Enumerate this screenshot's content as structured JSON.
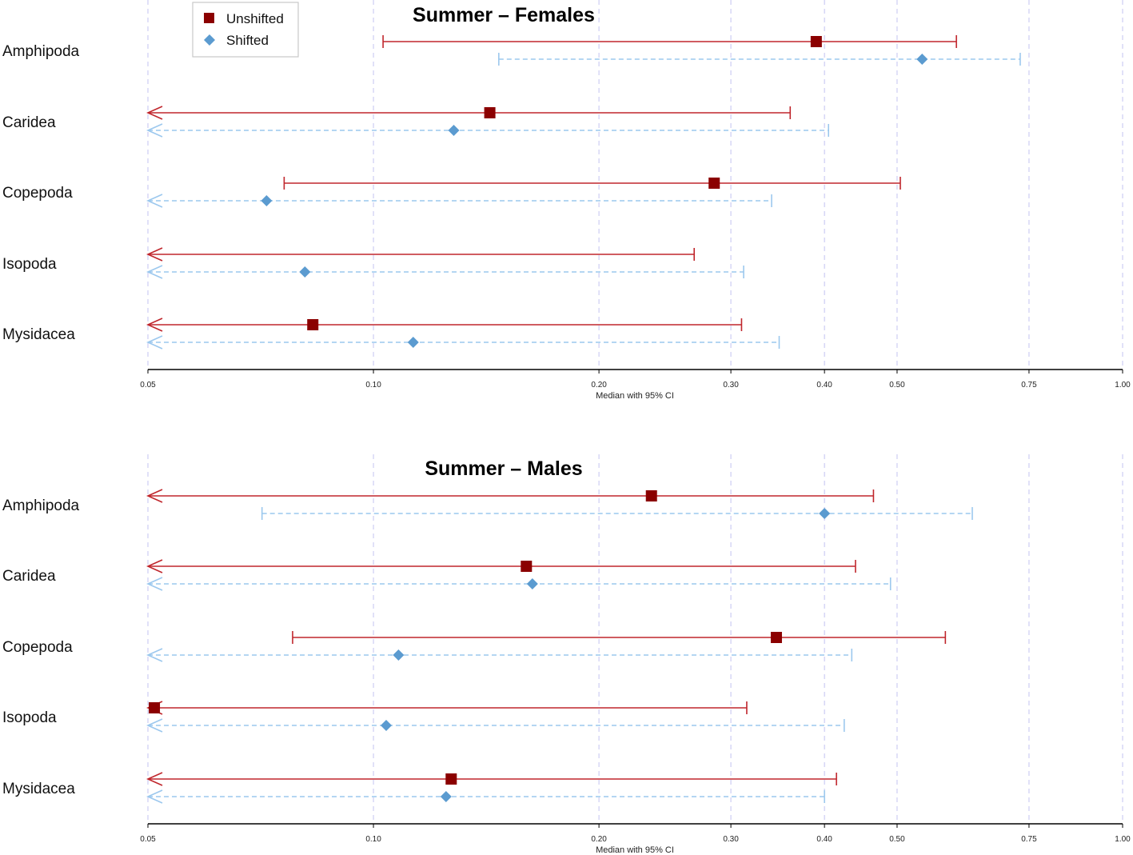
{
  "colors": {
    "unshifted": "#c0272d",
    "unshifted_marker": "#8b0000",
    "shifted": "#9cc8ee",
    "shifted_marker": "#5b9bd0",
    "grid": "#c8c8f2",
    "axis": "#000000"
  },
  "legend": {
    "items": [
      {
        "label": "Unshifted",
        "marker": "square"
      },
      {
        "label": "Shifted",
        "marker": "diamond"
      }
    ]
  },
  "chart_data": [
    {
      "type": "forest",
      "title": "Summer – Females",
      "xlabel": "Median with 95% CI",
      "xscale": "log",
      "xlim": [
        0.05,
        1.0
      ],
      "ticks": [
        0.05,
        0.1,
        0.2,
        0.3,
        0.4,
        0.5,
        0.75,
        1.0
      ],
      "tick_labels": [
        "0.05",
        "0.10",
        "0.20",
        "0.30",
        "0.40",
        "0.50",
        "0.75",
        "1.00"
      ],
      "categories": [
        "Amphipoda",
        "Caridea",
        "Copepoda",
        "Isopoda",
        "Mysidacea"
      ],
      "series": [
        {
          "name": "Unshifted",
          "points": [
            {
              "median": 0.39,
              "lower": 0.103,
              "upper": 0.6
            },
            {
              "median": 0.143,
              "lower": null,
              "upper": 0.36
            },
            {
              "median": 0.285,
              "lower": 0.076,
              "upper": 0.505
            },
            {
              "median": null,
              "lower": null,
              "upper": 0.268
            },
            {
              "median": 0.083,
              "lower": null,
              "upper": 0.31
            }
          ]
        },
        {
          "name": "Shifted",
          "points": [
            {
              "median": 0.54,
              "lower": 0.147,
              "upper": 0.73
            },
            {
              "median": 0.128,
              "lower": null,
              "upper": 0.405
            },
            {
              "median": 0.072,
              "lower": null,
              "upper": 0.34
            },
            {
              "median": 0.081,
              "lower": null,
              "upper": 0.312
            },
            {
              "median": 0.113,
              "lower": null,
              "upper": 0.348
            }
          ]
        }
      ]
    },
    {
      "type": "forest",
      "title": "Summer – Males",
      "xlabel": "Median with 95% CI",
      "xscale": "log",
      "xlim": [
        0.05,
        1.0
      ],
      "ticks": [
        0.05,
        0.1,
        0.2,
        0.3,
        0.4,
        0.5,
        0.75,
        1.0
      ],
      "tick_labels": [
        "0.05",
        "0.10",
        "0.20",
        "0.30",
        "0.40",
        "0.50",
        "0.75",
        "1.00"
      ],
      "categories": [
        "Amphipoda",
        "Caridea",
        "Copepoda",
        "Isopoda",
        "Mysidacea"
      ],
      "series": [
        {
          "name": "Unshifted",
          "points": [
            {
              "median": 0.235,
              "lower": null,
              "upper": 0.465
            },
            {
              "median": 0.16,
              "lower": null,
              "upper": 0.44
            },
            {
              "median": 0.345,
              "lower": 0.078,
              "upper": 0.58
            },
            {
              "median": 0.051,
              "lower": null,
              "upper": 0.315
            },
            {
              "median": 0.127,
              "lower": null,
              "upper": 0.415
            }
          ]
        },
        {
          "name": "Shifted",
          "points": [
            {
              "median": 0.4,
              "lower": 0.071,
              "upper": 0.63
            },
            {
              "median": 0.163,
              "lower": null,
              "upper": 0.49
            },
            {
              "median": 0.108,
              "lower": null,
              "upper": 0.435
            },
            {
              "median": 0.104,
              "lower": null,
              "upper": 0.425
            },
            {
              "median": 0.125,
              "lower": null,
              "upper": 0.4
            }
          ]
        }
      ]
    }
  ]
}
